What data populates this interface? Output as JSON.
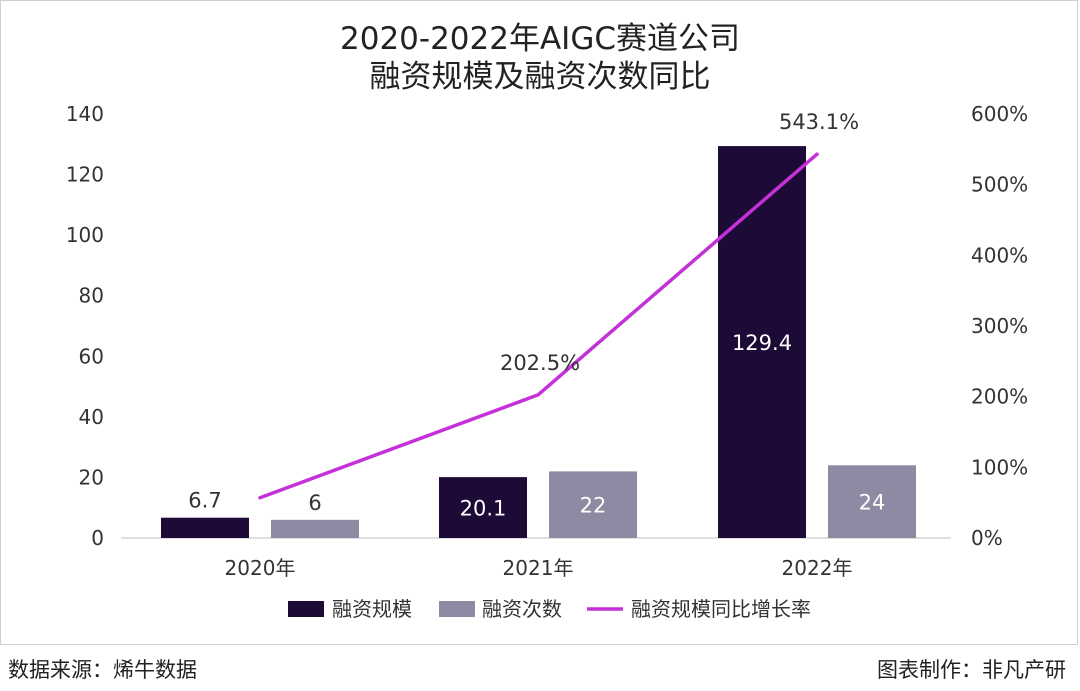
{
  "chart_data": {
    "type": "bar",
    "title": [
      "2020-2022年AIGC赛道公司",
      "融资规模及融资次数同比"
    ],
    "categories": [
      "2020年",
      "2021年",
      "2022年"
    ],
    "series": [
      {
        "name": "融资规模",
        "kind": "bar",
        "axis": "left",
        "color": "#1e0a36",
        "values": [
          6.7,
          20.1,
          129.4
        ],
        "labels": [
          "6.7",
          "20.1",
          "129.4"
        ]
      },
      {
        "name": "融资次数",
        "kind": "bar",
        "axis": "left",
        "color": "#8e8aa3",
        "values": [
          6,
          22,
          24
        ],
        "labels": [
          "6",
          "22",
          "24"
        ]
      },
      {
        "name": "融资规模同比增长率",
        "kind": "line",
        "axis": "right",
        "color": "#c531d8",
        "values": [
          null,
          202.5,
          543.1
        ],
        "labels": [
          "",
          "202.5%",
          "543.1%"
        ]
      }
    ],
    "line_start_value": 57,
    "y_left": {
      "ylim": [
        0,
        140
      ],
      "ticks": [
        "0",
        "20",
        "40",
        "60",
        "80",
        "100",
        "120",
        "140"
      ]
    },
    "y_right": {
      "ylim": [
        0,
        600
      ],
      "ticks": [
        "0%",
        "100%",
        "200%",
        "300%",
        "400%",
        "500%",
        "600%"
      ]
    },
    "grid": false,
    "legend": "bottom"
  },
  "footer": {
    "source": "数据来源：烯牛数据",
    "credit": "图表制作：非凡产研"
  }
}
